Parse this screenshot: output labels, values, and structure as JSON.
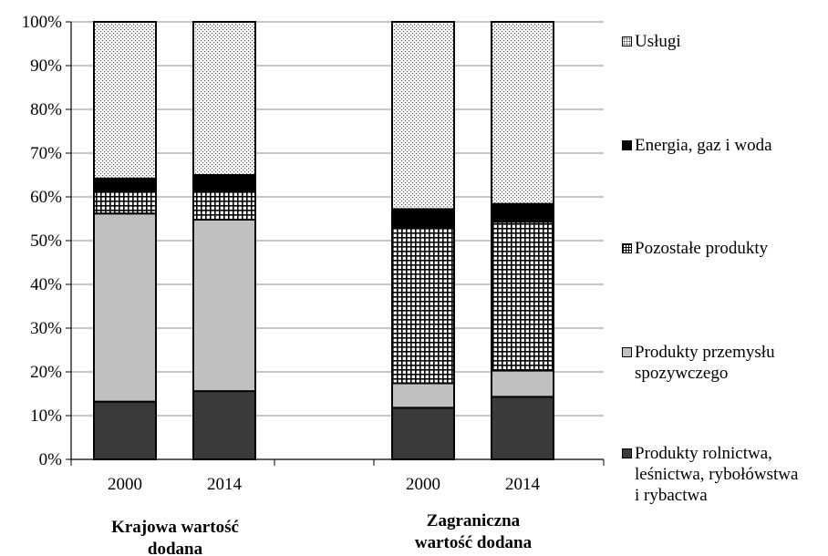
{
  "chart_data": {
    "type": "bar",
    "stacked": true,
    "normalized": true,
    "ylim": [
      0,
      100
    ],
    "yticks": [
      "0%",
      "10%",
      "20%",
      "30%",
      "40%",
      "50%",
      "60%",
      "70%",
      "80%",
      "90%",
      "100%"
    ],
    "groups": [
      {
        "label": "Krajowa wartość dodana",
        "categories": [
          "2000",
          "2014"
        ]
      },
      {
        "label": "Zagraniczna wartość dodana",
        "categories": [
          "2000",
          "2014"
        ]
      }
    ],
    "series": [
      {
        "name": "Produkty rolnictwa, leśnictwa, rybołówstwa i rybactwa",
        "pattern": "solid-dark",
        "color": "#3a3a3a",
        "values": [
          13.2,
          15.6,
          11.8,
          14.3
        ]
      },
      {
        "name": "Produkty przemysłu spozywczego",
        "pattern": "solid-light",
        "color": "#c0c0c0",
        "values": [
          43.0,
          39.2,
          5.6,
          6.0
        ]
      },
      {
        "name": "Pozostałe produkty",
        "pattern": "grid",
        "color": "#000000",
        "values": [
          5.0,
          6.5,
          35.6,
          34.0
        ]
      },
      {
        "name": "Energia, gaz i woda",
        "pattern": "solid-black",
        "color": "#000000",
        "values": [
          3.0,
          3.7,
          4.2,
          4.1
        ]
      },
      {
        "name": "Usługi",
        "pattern": "dots",
        "color": "#000000",
        "values": [
          35.8,
          35.0,
          42.8,
          41.6
        ]
      }
    ],
    "legend": {
      "position": "right",
      "items": [
        "Usługi",
        "Energia, gaz i woda",
        "Pozostałe produkty",
        "Produkty przemysłu\nspozywczego",
        "Produkty rolnictwa,\nleśnictwa, rybołówstwa\ni rybactwa"
      ]
    },
    "grid": true
  }
}
